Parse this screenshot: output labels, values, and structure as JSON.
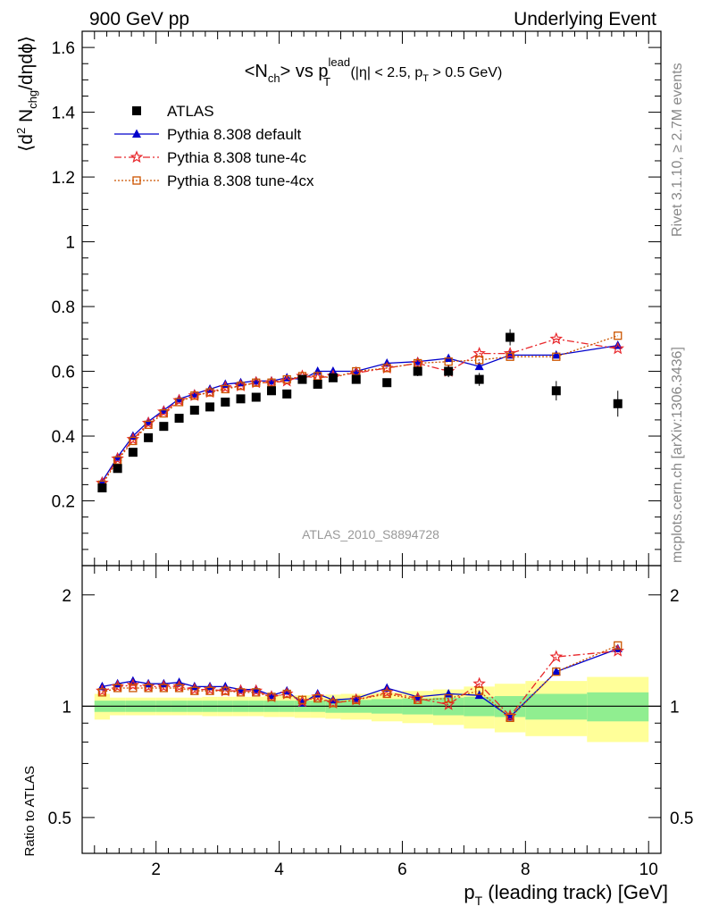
{
  "header": {
    "left": "900 GeV pp",
    "right": "Underlying Event"
  },
  "side_labels": {
    "rivet": "Rivet 3.1.10, ≥ 2.7M events",
    "mcplots": "mcplots.cern.ch [arXiv:1306.3436]"
  },
  "chart_data": [
    {
      "type": "scatter",
      "title": {
        "main": "<N",
        "main_sub": "ch",
        "vs": "> vs p",
        "vs_sup": "lead",
        "vs_sub": "T",
        "cuts_a": " (|η| < 2.5, p",
        "cuts_sub": "T",
        "cuts_b": " > 0.5 GeV)"
      },
      "ylabel": "⟨d² N_chg/dηdϕ⟩",
      "ylabel_parts": {
        "a": "⟨d",
        "sup": "2",
        "b": " N",
        "sub": "chg",
        "c": "/dηdϕ⟩"
      },
      "watermark": "ATLAS_2010_S8894728",
      "xlim": [
        0.8,
        10.2
      ],
      "ylim": [
        0,
        1.65
      ],
      "yticks": [
        {
          "v": 0.2,
          "label": "0.2"
        },
        {
          "v": 0.4,
          "label": "0.4"
        },
        {
          "v": 0.6,
          "label": "0.6"
        },
        {
          "v": 0.8,
          "label": "0.8"
        },
        {
          "v": 1.0,
          "label": "1"
        },
        {
          "v": 1.2,
          "label": "1.2"
        },
        {
          "v": 1.4,
          "label": "1.4"
        },
        {
          "v": 1.6,
          "label": "1.6"
        }
      ],
      "legend_position": "top-left",
      "x": [
        1.125,
        1.375,
        1.625,
        1.875,
        2.125,
        2.375,
        2.625,
        2.875,
        3.125,
        3.375,
        3.625,
        3.875,
        4.125,
        4.375,
        4.625,
        4.875,
        5.25,
        5.75,
        6.25,
        6.75,
        7.25,
        7.75,
        8.5,
        9.5
      ],
      "series": [
        {
          "name": "ATLAS",
          "color": "#000000",
          "marker": "square",
          "values": [
            0.24,
            0.3,
            0.35,
            0.395,
            0.43,
            0.455,
            0.48,
            0.49,
            0.505,
            0.515,
            0.52,
            0.54,
            0.53,
            0.575,
            0.56,
            0.58,
            0.575,
            0.565,
            0.6,
            0.6,
            0.575,
            0.705,
            0.54,
            0.5
          ],
          "errors": [
            0.005,
            0.005,
            0.005,
            0.005,
            0.005,
            0.005,
            0.005,
            0.005,
            0.006,
            0.006,
            0.006,
            0.007,
            0.007,
            0.008,
            0.008,
            0.009,
            0.01,
            0.012,
            0.015,
            0.018,
            0.02,
            0.025,
            0.03,
            0.04
          ]
        },
        {
          "name": "Pythia 8.308 default",
          "color": "#0000cc",
          "marker": "triangle",
          "line": "solid",
          "values": [
            0.26,
            0.335,
            0.4,
            0.445,
            0.48,
            0.515,
            0.53,
            0.545,
            0.56,
            0.565,
            0.57,
            0.57,
            0.58,
            0.575,
            0.6,
            0.6,
            0.6,
            0.625,
            0.63,
            0.64,
            0.615,
            0.65,
            0.65,
            0.68
          ]
        },
        {
          "name": "Pythia 8.308 tune-4c",
          "color": "#e8262a",
          "marker": "star",
          "line": "dashdot",
          "values": [
            0.255,
            0.33,
            0.39,
            0.44,
            0.475,
            0.51,
            0.525,
            0.535,
            0.55,
            0.555,
            0.565,
            0.565,
            0.57,
            0.585,
            0.58,
            0.585,
            0.595,
            0.61,
            0.625,
            0.6,
            0.655,
            0.655,
            0.7,
            0.67
          ]
        },
        {
          "name": "Pythia 8.308 tune-4cx",
          "color": "#cc5500",
          "marker": "open-square",
          "line": "dotted",
          "values": [
            0.25,
            0.325,
            0.385,
            0.435,
            0.47,
            0.505,
            0.525,
            0.535,
            0.545,
            0.555,
            0.565,
            0.565,
            0.575,
            0.585,
            0.585,
            0.58,
            0.6,
            0.61,
            0.625,
            0.63,
            0.635,
            0.645,
            0.645,
            0.71
          ]
        }
      ]
    },
    {
      "type": "scatter",
      "ylabel": "Ratio to ATLAS",
      "yscale": "log",
      "ylim": [
        0.4,
        2.4
      ],
      "yticks": [
        {
          "v": 0.5,
          "label": "0.5"
        },
        {
          "v": 1,
          "label": "1"
        },
        {
          "v": 2,
          "label": "2"
        }
      ],
      "xlim": [
        0.8,
        10.2
      ],
      "xticks": [
        {
          "v": 2,
          "label": "2"
        },
        {
          "v": 4,
          "label": "4"
        },
        {
          "v": 6,
          "label": "6"
        },
        {
          "v": 8,
          "label": "8"
        },
        {
          "v": 10,
          "label": "10"
        }
      ],
      "xlabel": "p_T (leading track) [GeV]",
      "xlabel_parts": {
        "a": "p",
        "sub": "T",
        "b": " (leading track) [GeV]"
      },
      "bands": {
        "bin_edges": [
          1.0,
          1.25,
          1.5,
          1.75,
          2.0,
          2.25,
          2.5,
          2.75,
          3.0,
          3.25,
          3.5,
          3.75,
          4.0,
          4.25,
          4.5,
          4.75,
          5.0,
          5.5,
          6.0,
          6.5,
          7.0,
          7.5,
          8.0,
          9.0,
          10.0
        ],
        "inner_color": "#90ee90",
        "outer_color": "#ffff99",
        "inner_halfwidth": [
          0.035,
          0.035,
          0.035,
          0.035,
          0.035,
          0.035,
          0.035,
          0.035,
          0.035,
          0.035,
          0.035,
          0.035,
          0.035,
          0.035,
          0.035,
          0.04,
          0.04,
          0.045,
          0.05,
          0.055,
          0.06,
          0.065,
          0.08,
          0.09
        ],
        "outer_halfwidth": [
          0.08,
          0.055,
          0.055,
          0.055,
          0.055,
          0.055,
          0.055,
          0.06,
          0.06,
          0.06,
          0.06,
          0.065,
          0.065,
          0.07,
          0.07,
          0.075,
          0.08,
          0.09,
          0.1,
          0.11,
          0.13,
          0.15,
          0.17,
          0.2
        ]
      },
      "series": [
        {
          "name": "Pythia 8.308 default",
          "color": "#0000cc",
          "marker": "triangle",
          "line": "solid",
          "values": [
            1.13,
            1.15,
            1.17,
            1.15,
            1.15,
            1.16,
            1.13,
            1.13,
            1.13,
            1.11,
            1.11,
            1.07,
            1.1,
            1.02,
            1.08,
            1.04,
            1.05,
            1.12,
            1.06,
            1.08,
            1.07,
            0.935,
            1.24,
            1.43
          ]
        },
        {
          "name": "Pythia 8.308 tune-4c",
          "color": "#e8262a",
          "marker": "star",
          "line": "dashdot",
          "values": [
            1.1,
            1.13,
            1.14,
            1.13,
            1.13,
            1.13,
            1.11,
            1.11,
            1.1,
            1.1,
            1.1,
            1.06,
            1.08,
            1.03,
            1.06,
            1.02,
            1.04,
            1.09,
            1.05,
            1.01,
            1.15,
            0.94,
            1.36,
            1.41
          ]
        },
        {
          "name": "Pythia 8.308 tune-4cx",
          "color": "#cc5500",
          "marker": "open-square",
          "line": "dotted",
          "values": [
            1.09,
            1.12,
            1.12,
            1.12,
            1.12,
            1.12,
            1.1,
            1.1,
            1.1,
            1.09,
            1.09,
            1.06,
            1.08,
            1.04,
            1.05,
            1.02,
            1.04,
            1.08,
            1.04,
            1.05,
            1.1,
            0.93,
            1.24,
            1.46
          ]
        }
      ]
    }
  ]
}
